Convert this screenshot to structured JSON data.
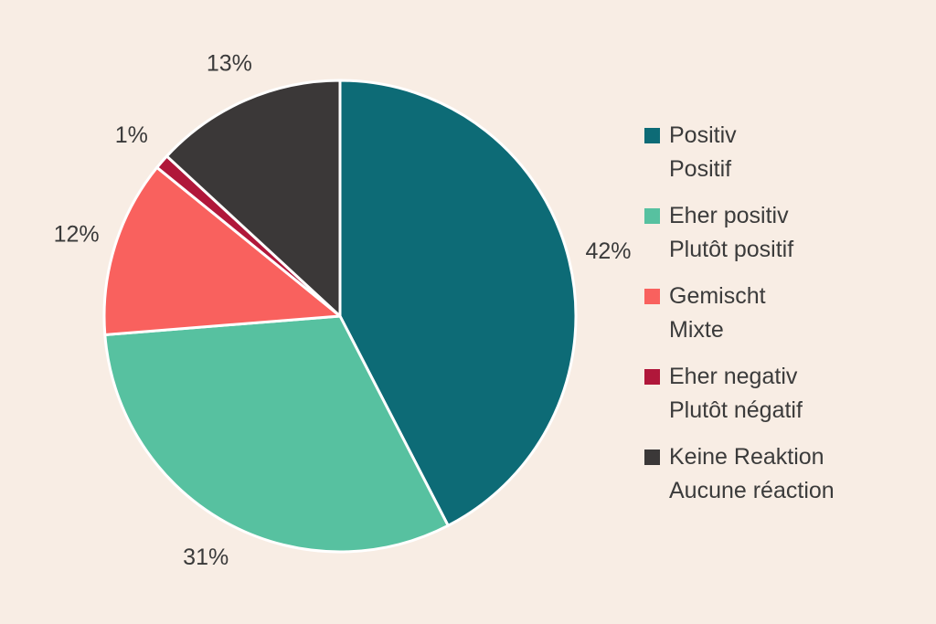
{
  "colors": {
    "background": "#f8ede4",
    "text": "#3a3a3a",
    "slice_divider": "#ffffff"
  },
  "chart_data": {
    "type": "pie",
    "title": "",
    "start_angle_deg": 0,
    "direction": "clockwise",
    "legend_position": "right",
    "slices": [
      {
        "label_de": "Positiv",
        "label_fr": "Positif",
        "value": 42,
        "percent_label": "42%",
        "color": "#0d6b76"
      },
      {
        "label_de": "Eher positiv",
        "label_fr": "Plutôt positif",
        "value": 31,
        "percent_label": "31%",
        "color": "#57c1a0"
      },
      {
        "label_de": "Gemischt",
        "label_fr": "Mixte",
        "value": 12,
        "percent_label": "12%",
        "color": "#f9615e"
      },
      {
        "label_de": "Eher negativ",
        "label_fr": "Plutôt négatif",
        "value": 1,
        "percent_label": "1%",
        "color": "#b0173a"
      },
      {
        "label_de": "Keine Reaktion",
        "label_fr": "Aucune réaction",
        "value": 13,
        "percent_label": "13%",
        "color": "#3b3838"
      }
    ]
  }
}
